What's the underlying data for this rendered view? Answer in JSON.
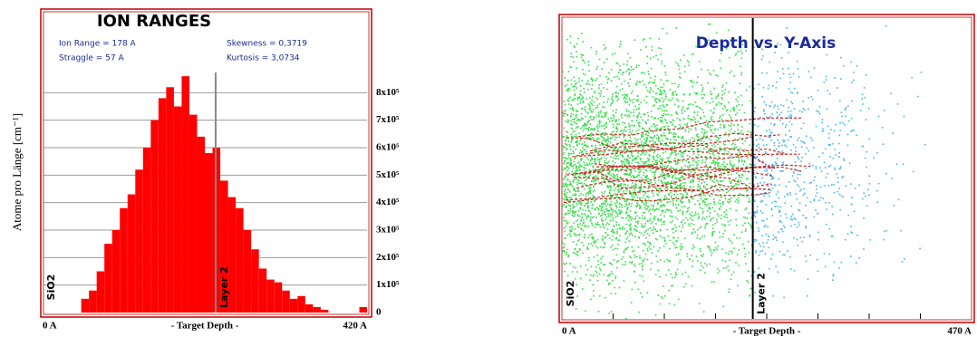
{
  "chart_data": [
    {
      "type": "histogram",
      "title": "ION RANGES",
      "stats": [
        "Ion Range   =  178 A",
        "Straggle   =  57 A",
        "Skewness   = 0,3719",
        "Kurtosis   = 3,0734"
      ],
      "ylabel": "Atome pro Länge [cm⁻¹]",
      "xlabel": "- Target Depth -",
      "bins": [
        0,
        10,
        20,
        30,
        40,
        50,
        60,
        70,
        80,
        90,
        100,
        110,
        120,
        130,
        140,
        150,
        160,
        170,
        180,
        190,
        200,
        210,
        220,
        230,
        240,
        250,
        260,
        270,
        280,
        290,
        300,
        310,
        320,
        330,
        340,
        350,
        360,
        370,
        380,
        390,
        400,
        410,
        420
      ],
      "values": [
        0,
        0,
        0,
        0,
        0,
        50000,
        80000,
        150000,
        250000,
        300000,
        380000,
        430000,
        520000,
        600000,
        700000,
        780000,
        820000,
        750000,
        860000,
        720000,
        640000,
        580000,
        600000,
        480000,
        420000,
        380000,
        300000,
        230000,
        160000,
        120000,
        110000,
        80000,
        50000,
        60000,
        30000,
        20000,
        10000,
        0,
        0,
        0,
        0,
        20000
      ],
      "color": "#ff0000",
      "xlim": [
        0,
        420
      ],
      "xticks": [
        {
          "value": 0,
          "label": "0 A"
        },
        {
          "value": 420,
          "label": "420 A"
        }
      ],
      "ylim": [
        0,
        900000
      ],
      "yticks": [
        0,
        {
          "value": 100000,
          "label": "1x10⁵"
        },
        {
          "value": 200000,
          "label": "2x10⁵"
        },
        {
          "value": 300000,
          "label": "3x10⁵"
        },
        {
          "value": 400000,
          "label": "4x10⁵"
        },
        {
          "value": 500000,
          "label": "5x10⁵"
        },
        {
          "value": 600000,
          "label": "6x10⁵"
        },
        {
          "value": 700000,
          "label": "7x10⁵"
        },
        {
          "value": 800000,
          "label": "8x10⁵"
        }
      ],
      "grid": true,
      "layers": [
        {
          "label": "SiO2",
          "start": 0
        },
        {
          "label": "Layer 2",
          "start": 224
        }
      ]
    },
    {
      "type": "trajectory",
      "title": "Depth vs. Y-Axis",
      "xlabel": "- Target Depth -",
      "xlim": [
        0,
        470
      ],
      "xticks": [
        {
          "value": 0,
          "label": "0 A"
        },
        {
          "value": 470,
          "label": "470 A"
        }
      ],
      "layers": [
        {
          "label": "SiO2",
          "start": 0
        },
        {
          "label": "Layer 2",
          "start": 219
        }
      ]
    }
  ]
}
